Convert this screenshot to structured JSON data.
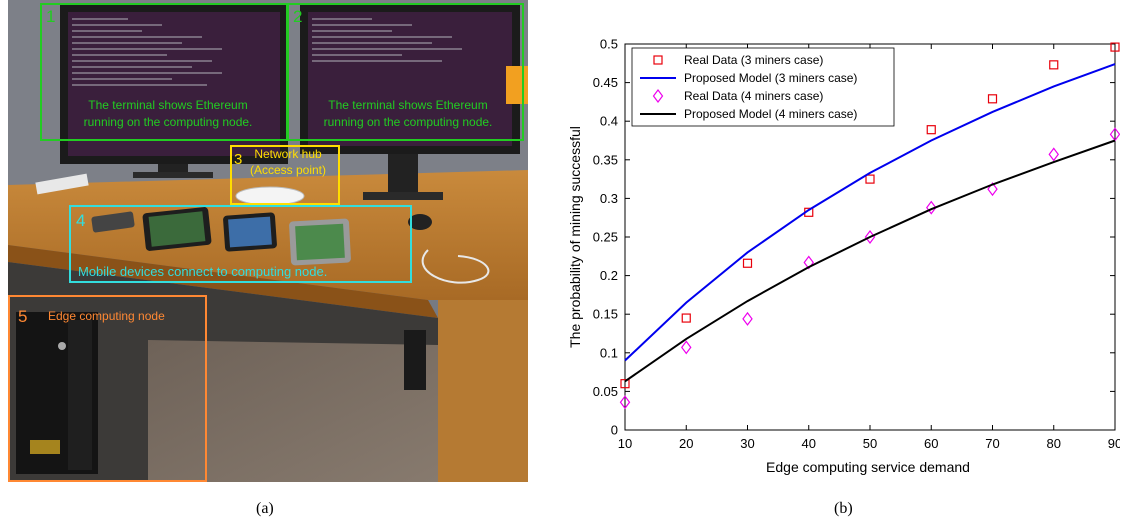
{
  "figure": {
    "captions": {
      "a": "(a)",
      "b": "(b)"
    }
  },
  "photo": {
    "callouts": [
      {
        "number": "1",
        "text_line1": "The terminal shows Ethereum",
        "text_line2": "running on the computing node.",
        "color": "#22cc22"
      },
      {
        "number": "2",
        "text_line1": "The terminal shows Ethereum",
        "text_line2": "running on the computing node.",
        "color": "#22cc22"
      },
      {
        "number": "3",
        "text_line1": "Network hub",
        "text_line2": "(Access point)",
        "color": "#ffdd00"
      },
      {
        "number": "4",
        "text_line1": "Mobile devices connect to computing node.",
        "text_line2": "",
        "color": "#33dddd"
      },
      {
        "number": "5",
        "text_line1": "Edge computing node",
        "text_line2": "",
        "color": "#ff8833"
      }
    ]
  },
  "chart_data": {
    "type": "line",
    "xlabel": "Edge computing service demand",
    "ylabel": "The probability of mining successful",
    "xlim": [
      10,
      90
    ],
    "ylim": [
      0,
      0.5
    ],
    "xticks": [
      "10",
      "20",
      "30",
      "40",
      "50",
      "60",
      "70",
      "80",
      "90"
    ],
    "xtick_values": [
      10,
      20,
      30,
      40,
      50,
      60,
      70,
      80,
      90
    ],
    "yticks": [
      "0",
      "0.05",
      "0.1",
      "0.15",
      "0.2",
      "0.25",
      "0.3",
      "0.35",
      "0.4",
      "0.45",
      "0.5"
    ],
    "ytick_values": [
      0,
      0.05,
      0.1,
      0.15,
      0.2,
      0.25,
      0.3,
      0.35,
      0.4,
      0.45,
      0.5
    ],
    "grid": false,
    "legend_position": "top-left",
    "series": [
      {
        "name": "Real Data (3 miners case)",
        "kind": "marker",
        "marker": "square",
        "color": "#e8000b",
        "x": [
          10,
          20,
          30,
          40,
          50,
          60,
          70,
          80,
          90
        ],
        "y": [
          0.06,
          0.145,
          0.216,
          0.282,
          0.325,
          0.389,
          0.429,
          0.473,
          0.496
        ]
      },
      {
        "name": "Proposed Model (3 miners case)",
        "kind": "line",
        "color": "#0000ee",
        "x": [
          10,
          20,
          30,
          40,
          50,
          60,
          70,
          80,
          90
        ],
        "y": [
          0.09,
          0.165,
          0.23,
          0.285,
          0.333,
          0.375,
          0.412,
          0.445,
          0.474
        ]
      },
      {
        "name": "Real Data (4 miners case)",
        "kind": "marker",
        "marker": "diamond",
        "color": "#ee00ee",
        "x": [
          10,
          20,
          30,
          40,
          50,
          60,
          70,
          80,
          90
        ],
        "y": [
          0.036,
          0.107,
          0.144,
          0.217,
          0.25,
          0.288,
          0.312,
          0.357,
          0.383
        ]
      },
      {
        "name": "Proposed Model (4 miners case)",
        "kind": "line",
        "color": "#000000",
        "x": [
          10,
          20,
          30,
          40,
          50,
          60,
          70,
          80,
          90
        ],
        "y": [
          0.063,
          0.118,
          0.167,
          0.211,
          0.25,
          0.286,
          0.318,
          0.347,
          0.375
        ]
      }
    ]
  }
}
